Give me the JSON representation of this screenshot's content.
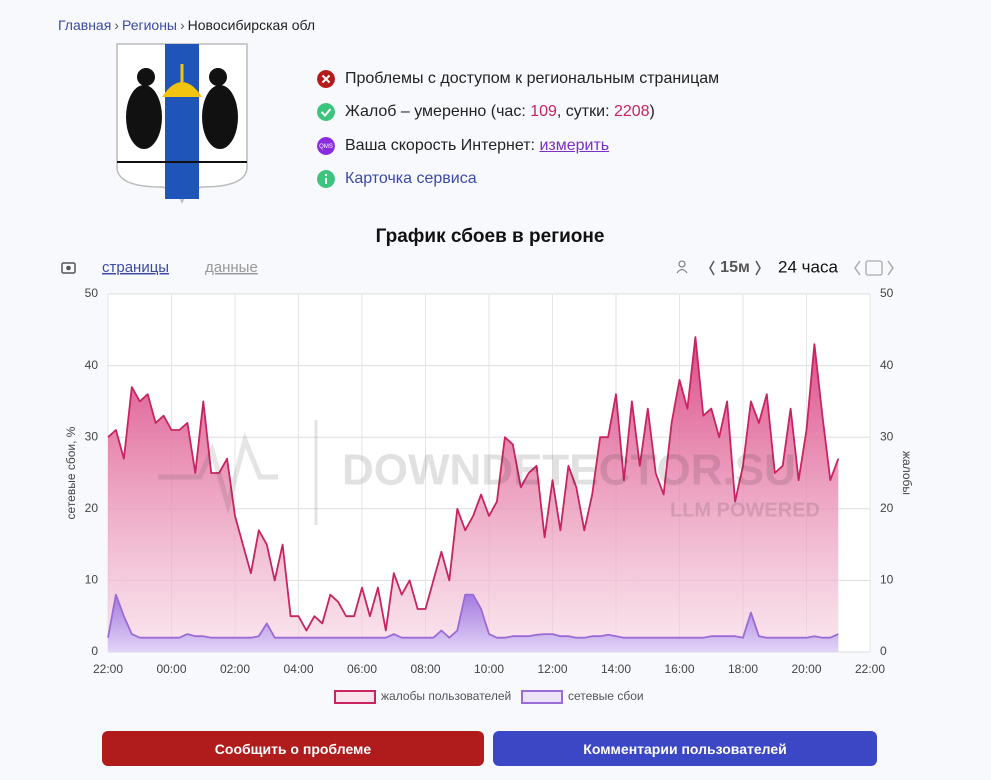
{
  "breadcrumbs": [
    "Главная",
    "Регионы",
    "Новосибирская обл"
  ],
  "status": {
    "access": "Проблемы с доступом к региональным страницам",
    "complaints": {
      "prefix": "Жалоб – умеренно (час: ",
      "hour": 109,
      "middle": ", сутки: ",
      "day": 2208,
      "suffix": ")"
    },
    "speed": {
      "icon": "QMS",
      "label": "Ваша скорость Интернет: ",
      "link": "измерить"
    },
    "card": "Карточка сервиса"
  },
  "chart_data": {
    "type": "area",
    "title": "График сбоев в регионе",
    "tabs": [
      "страницы",
      "данные"
    ],
    "interval": "15м",
    "period": "24 часа",
    "ylabel": "сетевые сбои, %",
    "y2label": "жалобы",
    "watermark": [
      "DOWNDETECTOR.SU",
      "LLM POWERED"
    ],
    "grid": true,
    "legend": "bottom",
    "ylim": [
      0,
      50
    ],
    "yticks": [
      0,
      10,
      20,
      30,
      40,
      50
    ],
    "y2lim": [
      0,
      50
    ],
    "y2ticks": [
      0,
      10,
      20,
      30,
      40,
      50
    ],
    "xticks": [
      "22:00",
      "00:00",
      "02:00",
      "04:00",
      "06:00",
      "08:00",
      "10:00",
      "12:00",
      "14:00",
      "16:00",
      "18:00",
      "20:00",
      "22:00"
    ],
    "x": [
      "22:00",
      "22:15",
      "22:30",
      "22:45",
      "23:00",
      "23:15",
      "23:30",
      "23:45",
      "00:00",
      "00:15",
      "00:30",
      "00:45",
      "01:00",
      "01:15",
      "01:30",
      "01:45",
      "02:00",
      "02:15",
      "02:30",
      "02:45",
      "03:00",
      "03:15",
      "03:30",
      "03:45",
      "04:00",
      "04:15",
      "04:30",
      "04:45",
      "05:00",
      "05:15",
      "05:30",
      "05:45",
      "06:00",
      "06:15",
      "06:30",
      "06:45",
      "07:00",
      "07:15",
      "07:30",
      "07:45",
      "08:00",
      "08:15",
      "08:30",
      "08:45",
      "09:00",
      "09:15",
      "09:30",
      "09:45",
      "10:00",
      "10:15",
      "10:30",
      "10:45",
      "11:00",
      "11:15",
      "11:30",
      "11:45",
      "12:00",
      "12:15",
      "12:30",
      "12:45",
      "13:00",
      "13:15",
      "13:30",
      "13:45",
      "14:00",
      "14:15",
      "14:30",
      "14:45",
      "15:00",
      "15:15",
      "15:30",
      "15:45",
      "16:00",
      "16:15",
      "16:30",
      "16:45",
      "17:00",
      "17:15",
      "17:30",
      "17:45",
      "18:00",
      "18:15",
      "18:30",
      "18:45",
      "19:00",
      "19:15",
      "19:30",
      "19:45",
      "20:00",
      "20:15",
      "20:30",
      "20:45",
      "21:00"
    ],
    "series": [
      {
        "name": "жалобы пользователей",
        "color": "#c8245f",
        "axis": "y2",
        "values": [
          30,
          31,
          27,
          37,
          35,
          36,
          32,
          33,
          31,
          31,
          32,
          25,
          35,
          25,
          25,
          27,
          19,
          15,
          11,
          17,
          15,
          10,
          15,
          5,
          5,
          3,
          5,
          4,
          8,
          7,
          5,
          5,
          9,
          5,
          9,
          3,
          11,
          8,
          10,
          6,
          6,
          10,
          14,
          10,
          20,
          17,
          19,
          22,
          19,
          21,
          30,
          29,
          23,
          25,
          26,
          16,
          24,
          17,
          26,
          23,
          17,
          22,
          30,
          30,
          36,
          24,
          35,
          26,
          34,
          25,
          22,
          32,
          38,
          34,
          44,
          33,
          34,
          30,
          35,
          21,
          26,
          35,
          32,
          36,
          25,
          26,
          34,
          24,
          31,
          43,
          33,
          24,
          27
        ]
      },
      {
        "name": "сетевые сбои",
        "color": "#9b6bd6",
        "values": [
          2,
          8,
          5,
          2.5,
          2,
          2,
          2,
          2,
          2,
          2,
          2.5,
          2.2,
          2.2,
          2,
          2,
          2,
          2,
          2,
          2,
          2.2,
          4,
          2,
          2,
          2,
          2,
          2,
          2,
          2,
          2,
          2,
          2,
          2,
          2,
          2,
          2,
          2,
          2.5,
          2,
          2,
          2,
          2,
          2,
          3,
          2,
          3,
          8,
          8,
          6,
          2.5,
          2,
          2,
          2.2,
          2.2,
          2.2,
          2.4,
          2.5,
          2.5,
          2.2,
          2.2,
          2,
          2,
          2.2,
          2.2,
          2.4,
          2.2,
          2,
          2,
          2,
          2,
          2,
          2,
          2,
          2,
          2,
          2,
          2,
          2.2,
          2.2,
          2.2,
          2.2,
          2,
          5.5,
          2.2,
          2,
          2,
          2,
          2,
          2,
          2,
          2.2,
          2,
          2,
          2.5
        ]
      }
    ]
  },
  "buttons": [
    "Сообщить о проблеме",
    "Комментарии пользователей"
  ]
}
